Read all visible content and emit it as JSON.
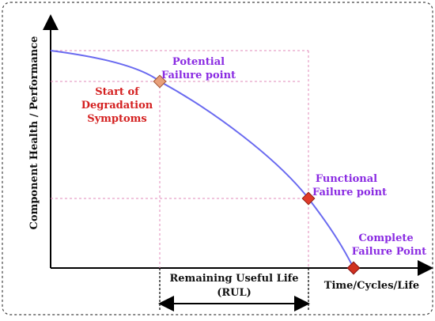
{
  "y_axis_label": "Component Health / Performance",
  "x_axis_label": "Time/Cycles/Life",
  "points": {
    "potential": {
      "line1": "Potential",
      "line2": "Failure point"
    },
    "degradation": {
      "line1": "Start of",
      "line2": "Degradation",
      "line3": "Symptoms"
    },
    "functional": {
      "line1": "Functional",
      "line2": "Failure point"
    },
    "complete": {
      "line1": "Complete",
      "line2": "Failure Point"
    }
  },
  "rul": {
    "line1": "Remaining Useful Life",
    "line2": "(RUL)"
  },
  "colors": {
    "curve": "#6a6af0",
    "guide": "#e08ab8",
    "purple_text": "#8a2be2",
    "red_text": "#d42020",
    "potential_marker": "#e8a07a",
    "failure_marker": "#e03a2a"
  }
}
